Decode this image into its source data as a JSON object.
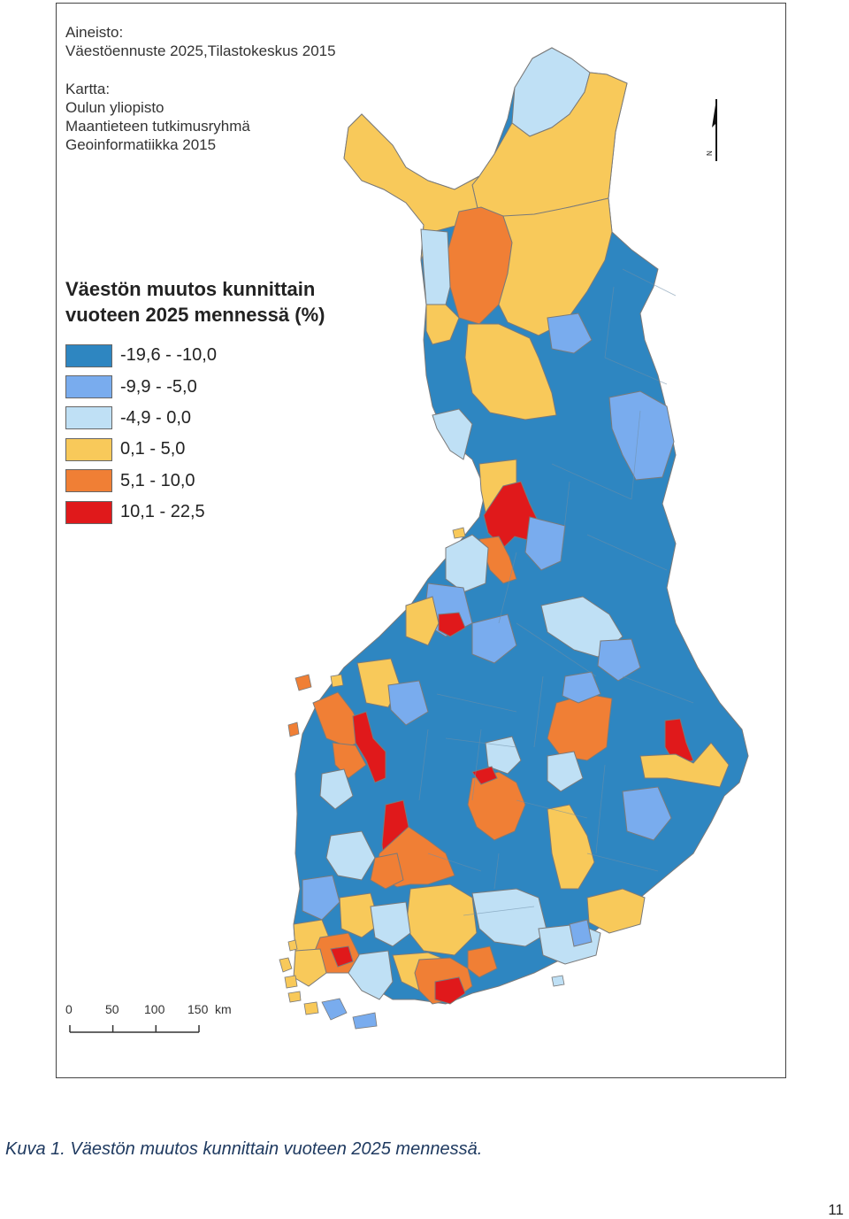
{
  "source": {
    "heading": "Aineisto:",
    "line": "Väestöennuste 2025,Tilastokeskus 2015"
  },
  "map_credit": {
    "heading": "Kartta:",
    "lines": [
      "Oulun yliopisto",
      "Maantieteen tutkimusryhmä",
      "Geoinformatiikka 2015"
    ]
  },
  "legend": {
    "title_line1": "Väestön muutos kunnittain",
    "title_line2": "vuoteen 2025 mennessä (%)",
    "items": [
      {
        "label": "-19,6 - -10,0",
        "color": "#2e86c1"
      },
      {
        "label": "-9,9 - -5,0",
        "color": "#79acee"
      },
      {
        "label": "-4,9 - 0,0",
        "color": "#bfe0f5"
      },
      {
        "label": "0,1 - 5,0",
        "color": "#f8c95a"
      },
      {
        "label": "5,1 - 10,0",
        "color": "#f07f35"
      },
      {
        "label": "10,1 - 22,5",
        "color": "#e0191b"
      }
    ]
  },
  "scale_bar": {
    "labels": [
      "0",
      "50",
      "100",
      "150"
    ],
    "unit": "km"
  },
  "north_arrow": {
    "letter": "N"
  },
  "caption": "Kuva 1. Väestön muutos kunnittain vuoteen 2025 mennessä.",
  "page_number": "11"
}
